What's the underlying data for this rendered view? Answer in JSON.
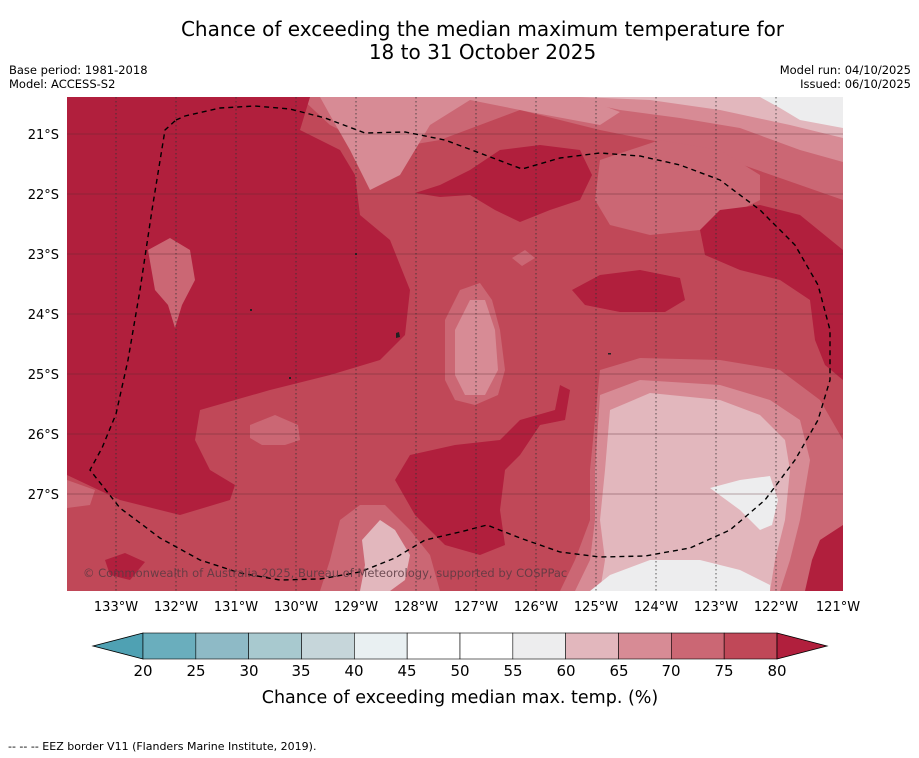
{
  "title": {
    "line1": "Chance of exceeding the median maximum temperature for",
    "line2": "18 to 31 October 2025"
  },
  "meta": {
    "base_period": "Base period: 1981-2018",
    "model": "Model: ACCESS-S2",
    "model_run": "Model run: 04/10/2025",
    "issued": "Issued: 06/10/2025"
  },
  "map": {
    "lat_labels": [
      "21°S",
      "22°S",
      "23°S",
      "24°S",
      "25°S",
      "26°S",
      "27°S"
    ],
    "lon_labels": [
      "133°W",
      "132°W",
      "131°W",
      "130°W",
      "129°W",
      "128°W",
      "127°W",
      "126°W",
      "125°W",
      "124°W",
      "123°W",
      "122°W",
      "121°W"
    ],
    "copyright": "© Commonwealth of Australia 2025, Bureau of Meteorology, supported by COSPPac"
  },
  "colorbar": {
    "ticks": [
      "20",
      "25",
      "30",
      "35",
      "40",
      "45",
      "50",
      "55",
      "60",
      "65",
      "70",
      "75",
      "80"
    ],
    "colors": [
      "#6aaebd",
      "#8ebac6",
      "#a8c9cf",
      "#c6d6da",
      "#e9f0f2",
      "#ffffff",
      "#ffffff",
      "#ededee",
      "#e2b7bd",
      "#d78b95",
      "#cb6774",
      "#c04858"
    ],
    "low_extend_color": "#4fa1b3",
    "high_extend_color": "#b11f3d",
    "label": "Chance of exceeding median max. temp. (%)"
  },
  "legend_note": "--  --  -- EEZ border V11 (Flanders Marine Institute, 2019).",
  "colors": {
    "c80": "#b11f3d",
    "c75": "#c04858",
    "c70": "#cb6774",
    "c65": "#d78b95",
    "c60": "#e2b7bd",
    "c55": "#ededee"
  }
}
